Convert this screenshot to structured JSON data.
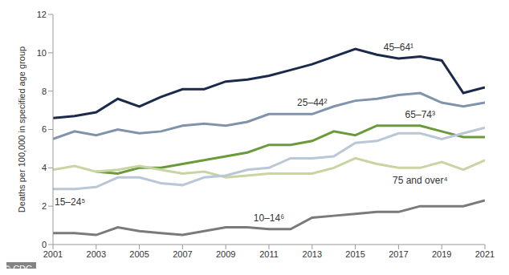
{
  "chart_data": {
    "type": "line",
    "y_label": "Deaths per 100,000 in specified age group",
    "annotations": [
      "© CDC"
    ],
    "x": [
      2001,
      2002,
      2003,
      2004,
      2005,
      2006,
      2007,
      2008,
      2009,
      2010,
      2011,
      2012,
      2013,
      2014,
      2015,
      2016,
      2017,
      2018,
      2019,
      2020,
      2021
    ],
    "xlim": [
      2001,
      2021
    ],
    "xticks": [
      2001,
      2003,
      2005,
      2007,
      2009,
      2011,
      2013,
      2015,
      2017,
      2019,
      2021
    ],
    "ylim": [
      0,
      12
    ],
    "yticks": [
      0,
      2,
      4,
      6,
      8,
      10,
      12
    ],
    "grid": false,
    "series": [
      {
        "name": "45–64¹",
        "color": "#1b2a4a",
        "values": [
          6.6,
          6.7,
          6.9,
          7.6,
          7.2,
          7.7,
          8.1,
          8.1,
          8.5,
          8.6,
          8.8,
          9.1,
          9.4,
          9.8,
          10.2,
          9.9,
          9.7,
          9.8,
          9.6,
          7.9,
          8.2
        ]
      },
      {
        "name": "25–44²",
        "color": "#7f93ab",
        "values": [
          5.5,
          5.9,
          5.7,
          6.0,
          5.8,
          5.9,
          6.2,
          6.3,
          6.2,
          6.4,
          6.8,
          6.8,
          6.8,
          7.2,
          7.5,
          7.6,
          7.8,
          7.9,
          7.4,
          7.2,
          7.4
        ]
      },
      {
        "name": "65–74³",
        "color": "#6b9a3a",
        "values": [
          null,
          null,
          3.8,
          3.7,
          4.0,
          4.0,
          4.2,
          4.4,
          4.6,
          4.8,
          5.2,
          5.2,
          5.4,
          5.9,
          5.7,
          6.2,
          6.2,
          6.2,
          5.9,
          5.6,
          5.6
        ]
      },
      {
        "name": "75 and over⁴",
        "color": "#c8d5a2",
        "values": [
          3.9,
          4.1,
          3.8,
          3.9,
          4.1,
          3.9,
          3.7,
          3.8,
          3.5,
          3.6,
          3.7,
          3.7,
          3.7,
          4.0,
          4.5,
          4.2,
          4.0,
          4.0,
          4.3,
          3.9,
          4.4
        ]
      },
      {
        "name": "15–24⁵",
        "color": "#b9c7d6",
        "values": [
          2.9,
          2.9,
          3.0,
          3.5,
          3.5,
          3.2,
          3.1,
          3.5,
          3.6,
          3.9,
          4.0,
          4.5,
          4.5,
          4.6,
          5.3,
          5.4,
          5.8,
          5.8,
          5.5,
          5.8,
          6.1
        ]
      },
      {
        "name": "10–14⁶",
        "color": "#7a7a7a",
        "values": [
          0.6,
          0.6,
          0.5,
          0.9,
          0.7,
          0.6,
          0.5,
          0.7,
          0.9,
          0.9,
          0.8,
          0.8,
          1.4,
          1.5,
          1.6,
          1.7,
          1.7,
          2.0,
          2.0,
          2.0,
          2.3
        ]
      }
    ]
  }
}
